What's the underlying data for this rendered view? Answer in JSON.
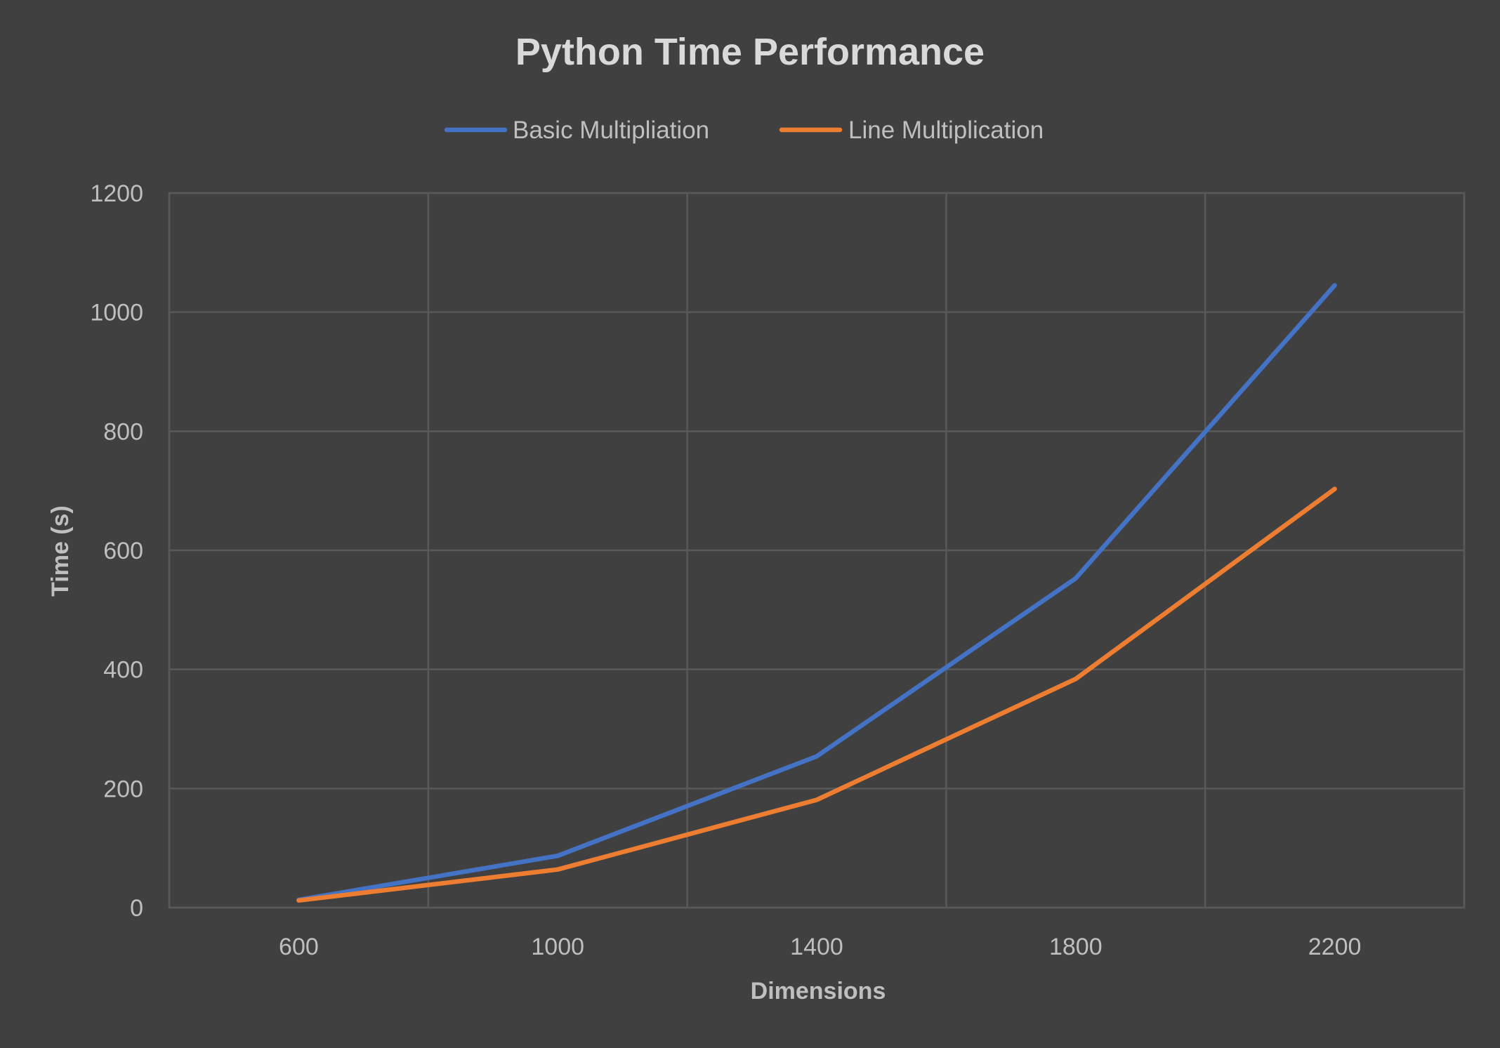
{
  "chart_data": {
    "type": "line",
    "title": "Python Time Performance",
    "xlabel": "Dimensions",
    "ylabel": "Time (s)",
    "x": [
      600,
      1000,
      1400,
      1800,
      2200
    ],
    "x_tick_labels": [
      "600",
      "1000",
      "1400",
      "1800",
      "2200"
    ],
    "y_tick_labels": [
      "0",
      "200",
      "400",
      "600",
      "800",
      "1000",
      "1200"
    ],
    "ylim": [
      0,
      1200
    ],
    "grid": true,
    "legend_position": "top",
    "series": [
      {
        "name": "Basic Multipliation",
        "color": "#4472c4",
        "values": [
          13,
          87,
          254,
          553,
          1045
        ]
      },
      {
        "name": "Line Multiplication",
        "color": "#ed7d31",
        "values": [
          12,
          64,
          181,
          384,
          703
        ]
      }
    ]
  }
}
